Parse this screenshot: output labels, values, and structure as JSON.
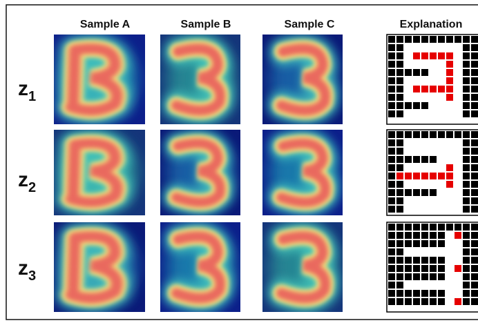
{
  "figure": {
    "columns": [
      "Sample A",
      "Sample B",
      "Sample C",
      "Explanation"
    ],
    "rows": [
      {
        "base": "z",
        "sub": "1"
      },
      {
        "base": "z",
        "sub": "2"
      },
      {
        "base": "z",
        "sub": "3"
      }
    ]
  }
}
